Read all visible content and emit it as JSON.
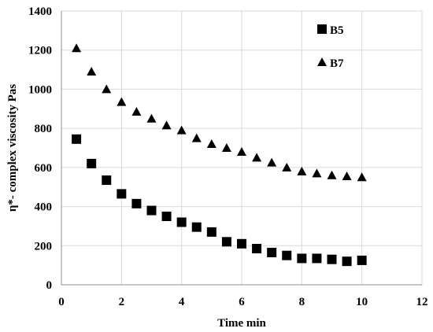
{
  "chart_data": {
    "type": "scatter",
    "title": "",
    "xlabel": "Time min",
    "ylabel": "η*-  complex viscosity  Pas",
    "xlim": [
      0,
      12
    ],
    "ylim": [
      0,
      1400
    ],
    "xticks": [
      "0",
      "2",
      "4",
      "6",
      "8",
      "10",
      "12"
    ],
    "yticks": [
      "0",
      "200",
      "400",
      "600",
      "800",
      "1000",
      "1200",
      "1400"
    ],
    "grid": true,
    "legend_position": "top-right",
    "series": [
      {
        "name": "B5",
        "marker": "square",
        "color": "#000000",
        "x": [
          0.5,
          1.0,
          1.5,
          2.0,
          2.5,
          3.0,
          3.5,
          4.0,
          4.5,
          5.0,
          5.5,
          6.0,
          6.5,
          7.0,
          7.5,
          8.0,
          8.5,
          9.0,
          9.5,
          10.0
        ],
        "y": [
          745,
          620,
          535,
          465,
          415,
          380,
          350,
          320,
          295,
          270,
          220,
          210,
          185,
          165,
          150,
          135,
          135,
          130,
          120,
          125
        ]
      },
      {
        "name": "B7",
        "marker": "triangle",
        "color": "#000000",
        "x": [
          0.5,
          1.0,
          1.5,
          2.0,
          2.5,
          3.0,
          3.5,
          4.0,
          4.5,
          5.0,
          5.5,
          6.0,
          6.5,
          7.0,
          7.5,
          8.0,
          8.5,
          9.0,
          9.5,
          10.0
        ],
        "y": [
          1210,
          1090,
          1000,
          935,
          885,
          850,
          815,
          790,
          750,
          720,
          700,
          680,
          650,
          625,
          600,
          580,
          570,
          560,
          555,
          550
        ]
      }
    ]
  }
}
